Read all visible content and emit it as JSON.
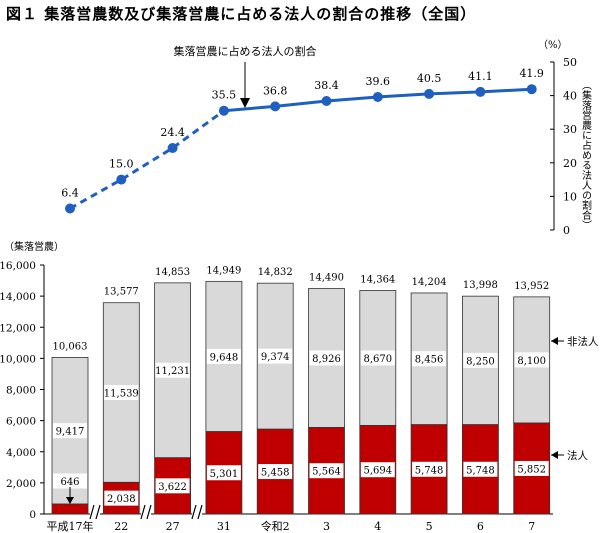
{
  "title": "図１ 集落営農数及び集落営農に占める法人の割合の推移（全国）",
  "chart_data": [
    {
      "type": "line",
      "categories": [
        "平成17年",
        "22",
        "27",
        "31",
        "令和2",
        "3",
        "4",
        "5",
        "6",
        "7"
      ],
      "values": [
        6.4,
        15.0,
        24.4,
        35.5,
        36.8,
        38.4,
        39.6,
        40.5,
        41.1,
        41.9
      ],
      "value_labels": [
        "6.4",
        "15.0",
        "24.4",
        "35.5",
        "36.8",
        "38.4",
        "39.6",
        "40.5",
        "41.1",
        "41.9"
      ],
      "y_unit": "（%）",
      "ylabel": "（集落営農に占める法人の割合）",
      "ylim": [
        0,
        50
      ],
      "yticks": [
        "0",
        "10",
        "20",
        "30",
        "40",
        "50"
      ],
      "annotation": "集落営農に占める法人の割合",
      "line_color": "#1f5fbf",
      "dashed_until_index": 3
    },
    {
      "type": "bar",
      "stacked": true,
      "categories": [
        "平成17年",
        "22",
        "27",
        "31",
        "令和2",
        "3",
        "4",
        "5",
        "6",
        "7"
      ],
      "totals": [
        "10,063",
        "13,577",
        "14,853",
        "14,949",
        "14,832",
        "14,490",
        "14,364",
        "14,204",
        "13,998",
        "13,952"
      ],
      "ylabel": "（集落営農）",
      "ylim": [
        0,
        16000
      ],
      "yticks": [
        "0",
        "2,000",
        "4,000",
        "6,000",
        "8,000",
        "10,000",
        "12,000",
        "14,000",
        "16,000"
      ],
      "series": [
        {
          "name": "法人",
          "values": [
            646,
            2038,
            3622,
            5301,
            5458,
            5564,
            5694,
            5748,
            5748,
            5852
          ],
          "labels": [
            "646",
            "2,038",
            "3,622",
            "5,301",
            "5,458",
            "5,564",
            "5,694",
            "5,748",
            "5,748",
            "5,852"
          ],
          "color": "#c00000"
        },
        {
          "name": "非法人",
          "values": [
            9417,
            11539,
            11231,
            9648,
            9374,
            8926,
            8670,
            8456,
            8250,
            8100
          ],
          "labels": [
            "9,417",
            "11,539",
            "11,231",
            "9,648",
            "9,374",
            "8,926",
            "8,670",
            "8,456",
            "8,250",
            "8,100"
          ],
          "color": "#d9d9d9"
        }
      ]
    }
  ]
}
